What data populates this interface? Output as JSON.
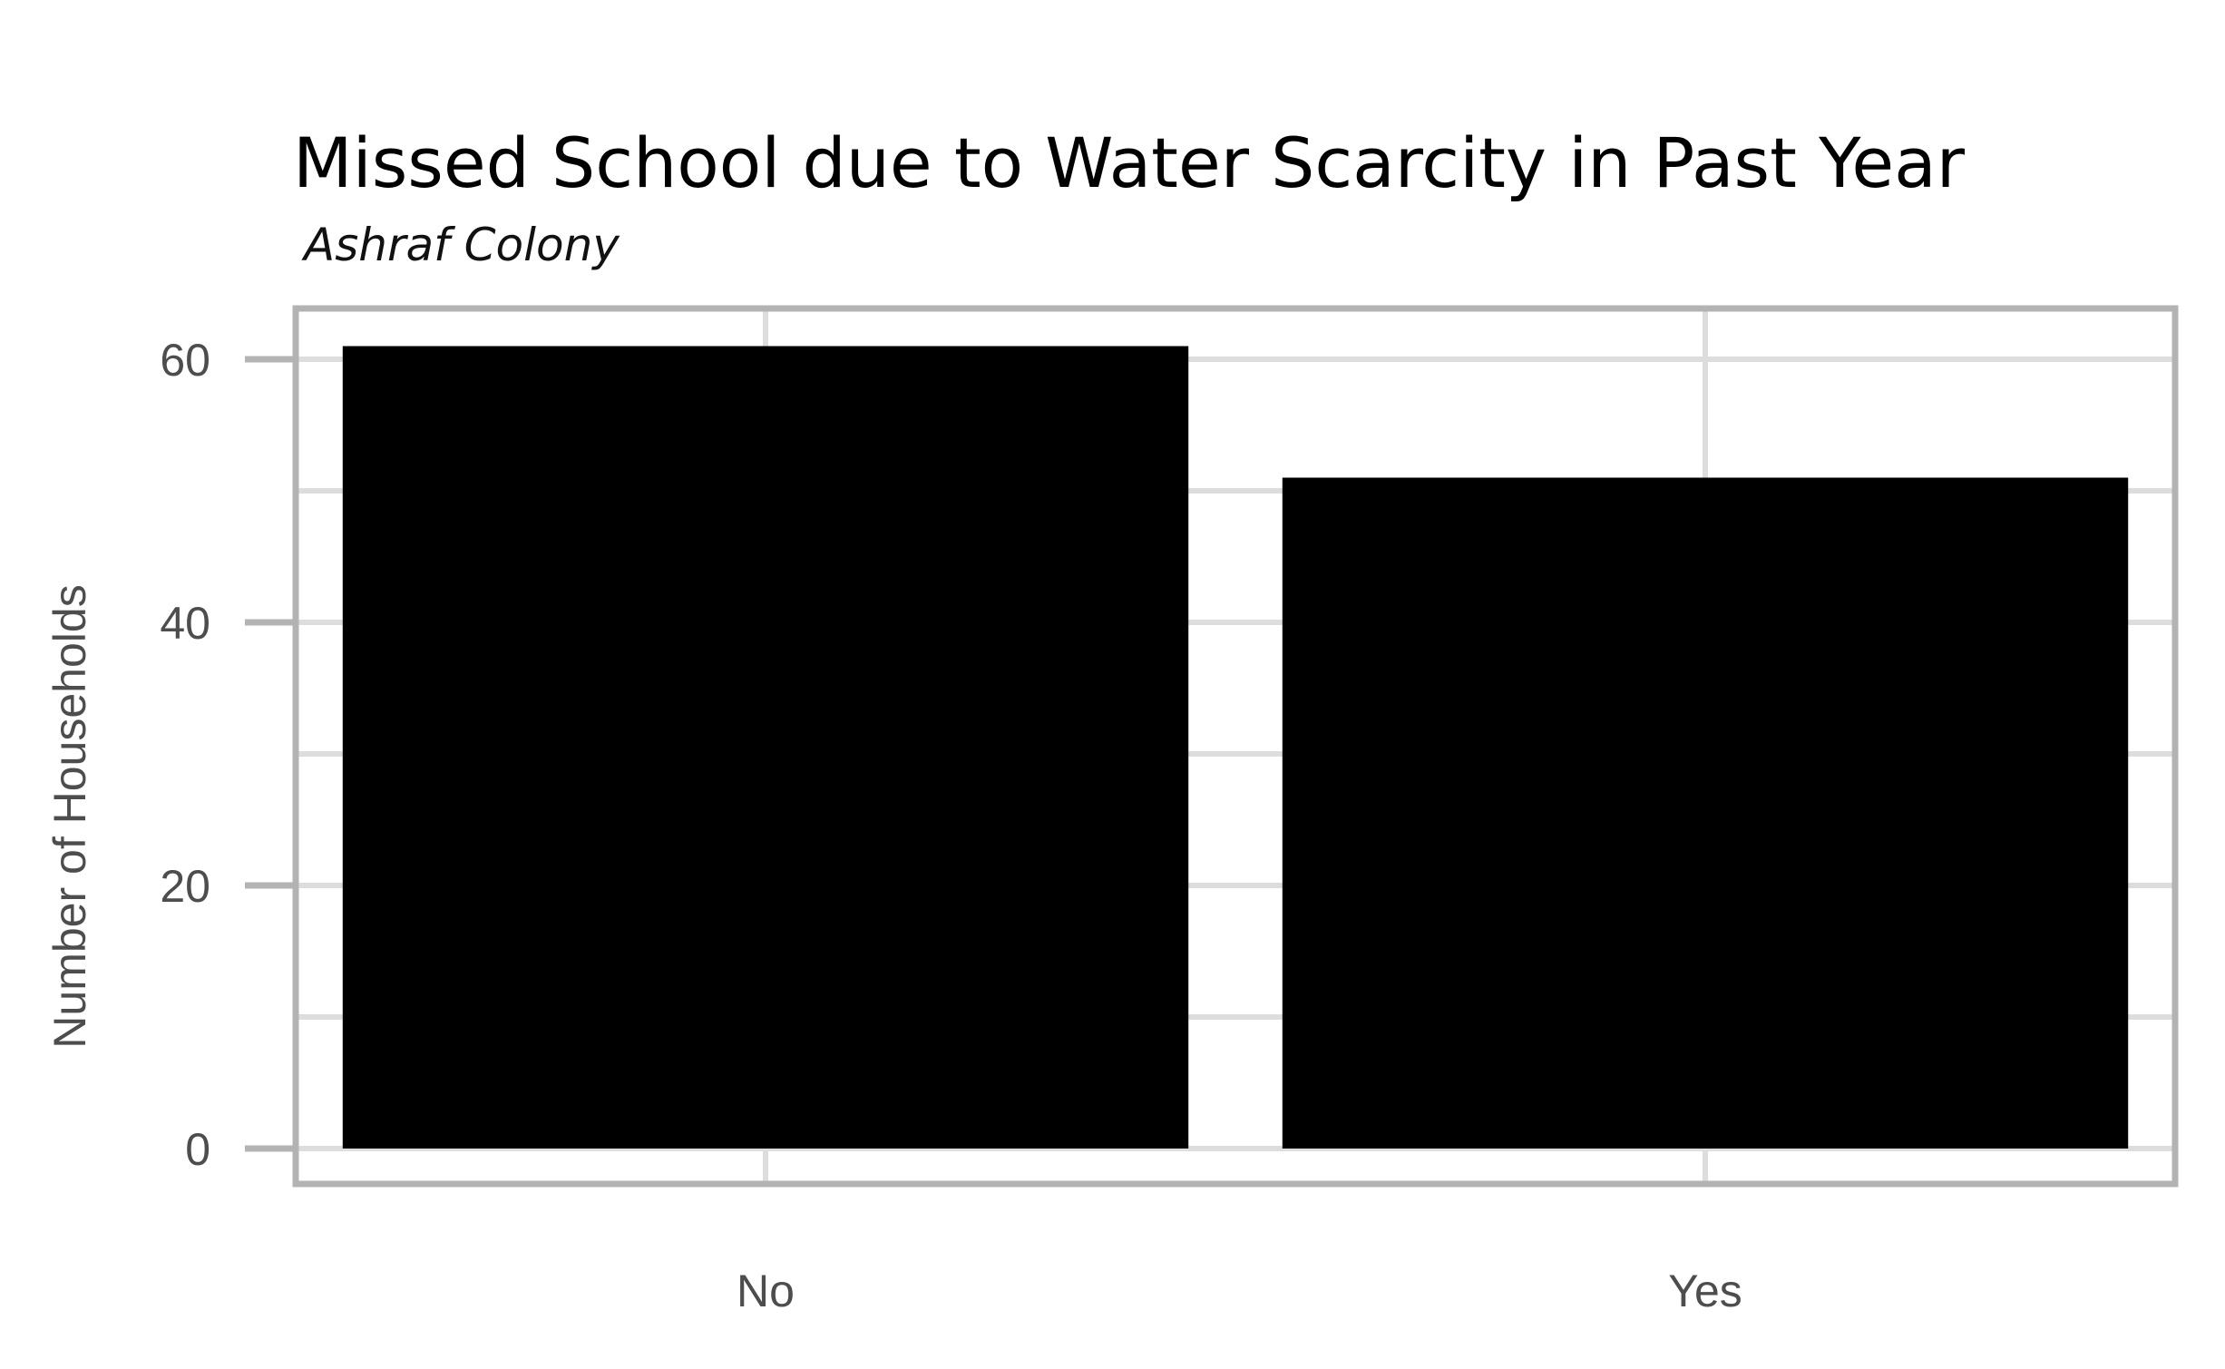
{
  "chart_data": {
    "type": "bar",
    "title": "Missed School due to Water Scarcity in Past Year",
    "subtitle": "Ashraf Colony",
    "xlabel": "",
    "ylabel": "Number of Households",
    "categories": [
      "No",
      "Yes"
    ],
    "values": [
      61,
      51
    ],
    "ylim": [
      0,
      63
    ],
    "yticks": [
      0,
      20,
      40,
      60
    ],
    "grid": true,
    "bar_color": "#000000",
    "grid_color": "#dddddd",
    "panel_border_color": "#b3b3b3"
  }
}
